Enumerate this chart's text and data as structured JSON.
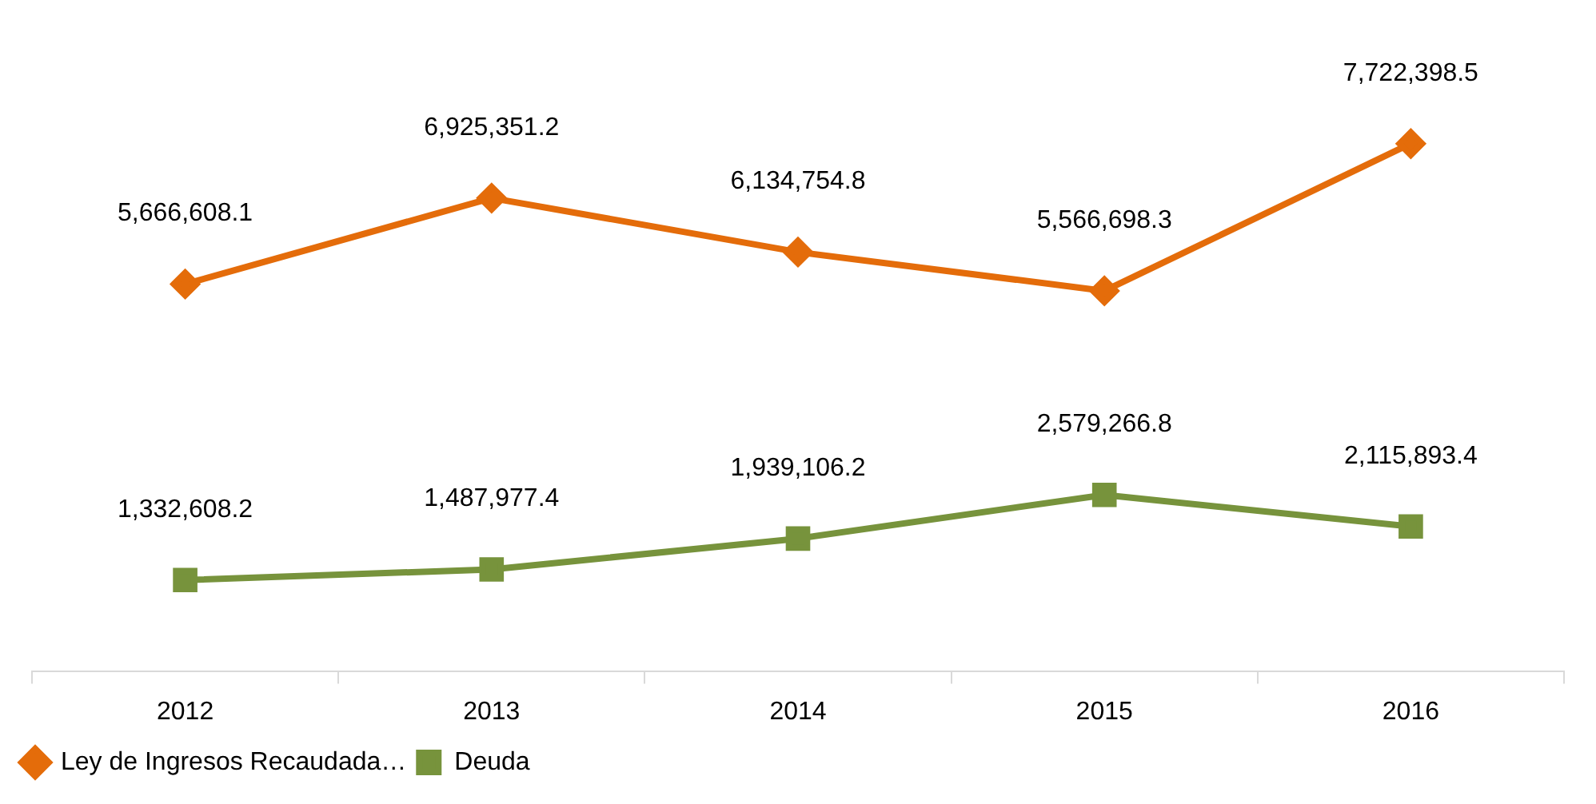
{
  "chart_data": {
    "type": "line",
    "categories": [
      "2012",
      "2013",
      "2014",
      "2015",
      "2016"
    ],
    "series": [
      {
        "name": "Ley de Ingresos Recaudada…",
        "color": "#e46c0a",
        "marker": "diamond",
        "values": [
          5666608.1,
          6925351.2,
          6134754.8,
          5566698.3,
          7722398.5
        ],
        "value_labels": [
          "5,666,608.1",
          "6,925,351.2",
          "6,134,754.8",
          "5,566,698.3",
          "7,722,398.5"
        ]
      },
      {
        "name": "Deuda",
        "color": "#77933c",
        "marker": "square",
        "values": [
          1332608.2,
          1487977.4,
          1939106.2,
          2579266.8,
          2115893.4
        ],
        "value_labels": [
          "1,332,608.2",
          "1,487,977.4",
          "1,939,106.2",
          "2,579,266.8",
          "2,115,893.4"
        ]
      }
    ],
    "legend": "bottom",
    "line_style": "solid"
  }
}
